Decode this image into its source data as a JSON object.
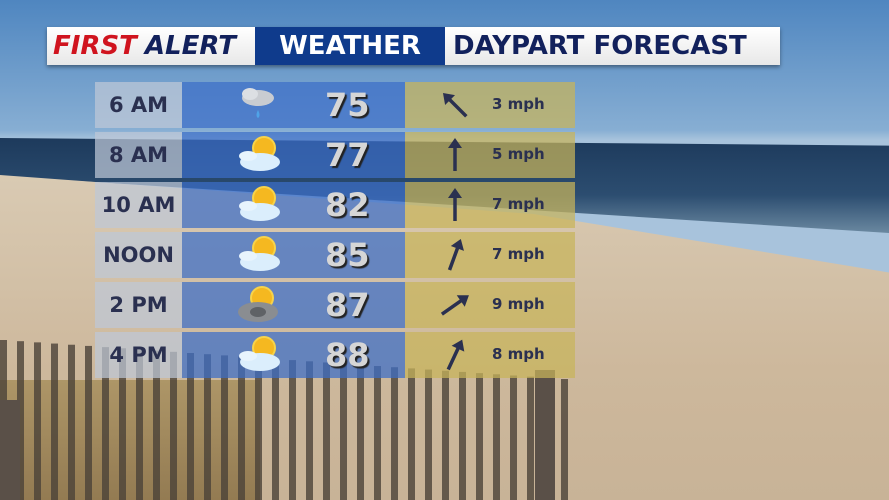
{
  "header": {
    "first": "FIRST",
    "alert": "ALERT",
    "weather": "WEATHER",
    "title": "DAYPART FORECAST"
  },
  "colors": {
    "red": "#d0141f",
    "navy": "#12215c",
    "banner_blue": "#0f3b8c"
  },
  "rows": [
    {
      "time": "6 AM",
      "icon": "cloud-rain-icon",
      "temp": "75",
      "wind_dir_deg": -45,
      "wind": "3 mph"
    },
    {
      "time": "8 AM",
      "icon": "partly-cloudy-icon",
      "temp": "77",
      "wind_dir_deg": 0,
      "wind": "5 mph"
    },
    {
      "time": "10 AM",
      "icon": "partly-cloudy-icon",
      "temp": "82",
      "wind_dir_deg": 0,
      "wind": "7 mph"
    },
    {
      "time": "NOON",
      "icon": "partly-cloudy-icon",
      "temp": "85",
      "wind_dir_deg": 20,
      "wind": "7 mph"
    },
    {
      "time": "2 PM",
      "icon": "sun-storm-cloud-icon",
      "temp": "87",
      "wind_dir_deg": 55,
      "wind": "9 mph"
    },
    {
      "time": "4 PM",
      "icon": "partly-cloudy-icon",
      "temp": "88",
      "wind_dir_deg": 25,
      "wind": "8 mph"
    }
  ]
}
